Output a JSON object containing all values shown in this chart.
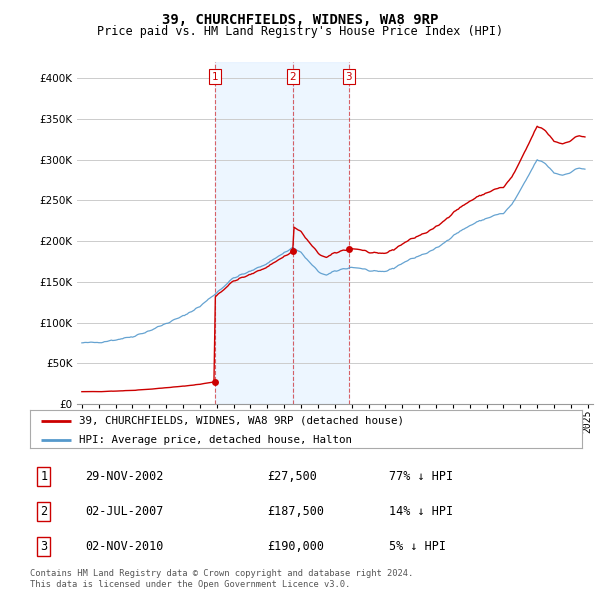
{
  "title": "39, CHURCHFIELDS, WIDNES, WA8 9RP",
  "subtitle": "Price paid vs. HM Land Registry's House Price Index (HPI)",
  "sale_color": "#cc0000",
  "hpi_color": "#5599cc",
  "dashed_color": "#cc0000",
  "background_color": "#ffffff",
  "panel_color": "#ddeeff",
  "grid_color": "#cccccc",
  "legend_sale_label": "39, CHURCHFIELDS, WIDNES, WA8 9RP (detached house)",
  "legend_hpi_label": "HPI: Average price, detached house, Halton",
  "transactions": [
    {
      "num": 1,
      "date": "29-NOV-2002",
      "date_x": 2002.91,
      "price": 27500,
      "pct": "77%",
      "dir": "↓"
    },
    {
      "num": 2,
      "date": "02-JUL-2007",
      "date_x": 2007.5,
      "price": 187500,
      "pct": "14%",
      "dir": "↓"
    },
    {
      "num": 3,
      "date": "02-NOV-2010",
      "date_x": 2010.84,
      "price": 190000,
      "pct": "5%",
      "dir": "↓"
    }
  ],
  "footnote": "Contains HM Land Registry data © Crown copyright and database right 2024.\nThis data is licensed under the Open Government Licence v3.0.",
  "ylim": [
    0,
    420000
  ],
  "yticks": [
    0,
    50000,
    100000,
    150000,
    200000,
    250000,
    300000,
    350000,
    400000
  ],
  "xlim_left": 1994.7,
  "xlim_right": 2025.3,
  "xtick_start": 1995,
  "xtick_end": 2025
}
